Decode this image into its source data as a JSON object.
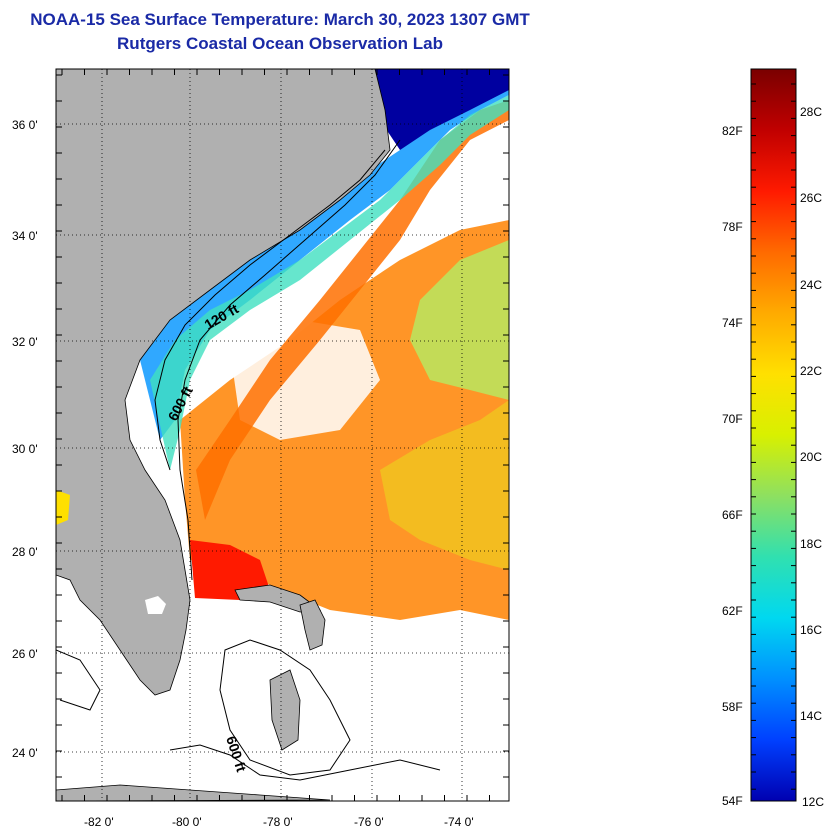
{
  "header": {
    "title": "NOAA-15 Sea Surface Temperature:  March 30, 2023 1307 GMT",
    "subtitle": "Rutgers Coastal Ocean Observation Lab"
  },
  "map": {
    "lat_labels": [
      "36 0'",
      "34 0'",
      "32 0'",
      "30 0'",
      "28 0'",
      "26 0'",
      "24 0'"
    ],
    "lon_labels": [
      "-82 0'",
      "-80 0'",
      "-78 0'",
      "-76 0'",
      "-74 0'"
    ],
    "contour_labels": [
      "120 ft",
      "600 ft",
      "600 ft"
    ]
  },
  "colorbar": {
    "fahrenheit_labels": [
      "82F",
      "78F",
      "74F",
      "70F",
      "66F",
      "62F",
      "58F",
      "54F"
    ],
    "celsius_labels": [
      "28C",
      "26C",
      "24C",
      "22C",
      "20C",
      "18C",
      "16C",
      "14C",
      "12C"
    ],
    "colors": [
      "#7a0000",
      "#c00000",
      "#ff1a00",
      "#ff6a00",
      "#ffaa00",
      "#ffe000",
      "#d8f000",
      "#8ee060",
      "#30e0b0",
      "#00d8f0",
      "#0090ff",
      "#0040ff",
      "#0000b0"
    ]
  },
  "colors": {
    "land": "#b0b0b0",
    "title": "#1a2aa6",
    "cold_water": "#0000a0",
    "warm_water": "#ff8000"
  }
}
